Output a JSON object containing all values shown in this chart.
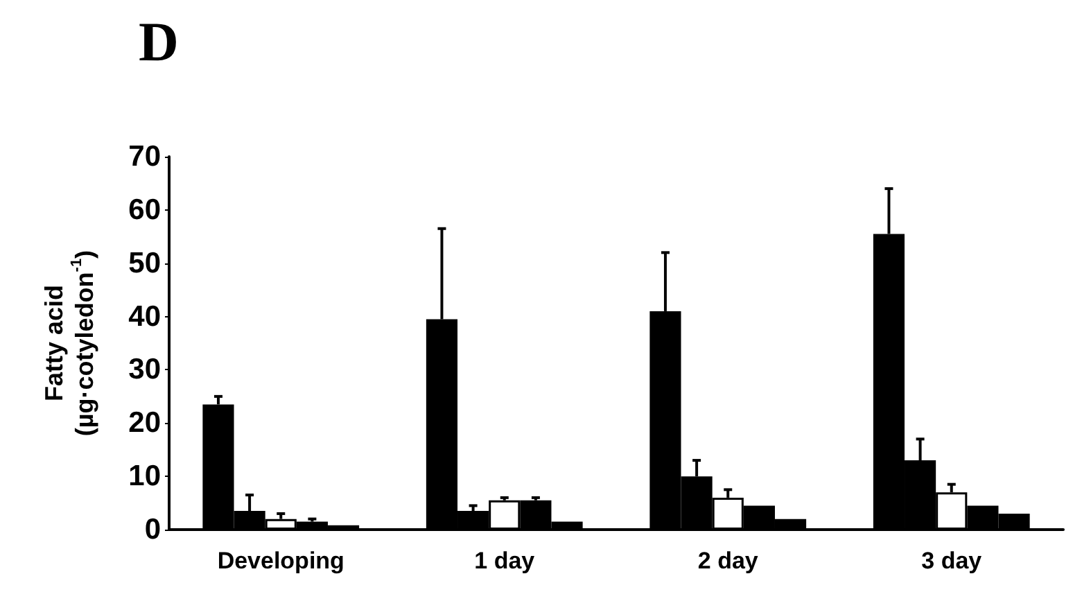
{
  "chart_data": {
    "type": "bar",
    "title": "D",
    "ylabel": "Fatty acid\n(µg·cotyledon$^{-1}$)",
    "categories": [
      "Developing",
      "1 day",
      "2 day",
      "3 day"
    ],
    "series": [
      {
        "color": "#000000",
        "values": [
          23.5,
          39.5,
          41,
          55.5
        ],
        "errors": [
          [
            23.5,
            25
          ],
          [
            39.5,
            56.5
          ],
          [
            41,
            52
          ],
          [
            55.5,
            64
          ]
        ]
      },
      {
        "color": "#000000",
        "values": [
          3.5,
          3.5,
          10,
          13
        ],
        "errors": [
          [
            3.5,
            6.5
          ],
          [
            3.5,
            4.5
          ],
          [
            10,
            13
          ],
          [
            13,
            17
          ]
        ]
      },
      {
        "color": "#ffffff",
        "values": [
          2,
          5.5,
          6,
          7
        ],
        "errors": [
          [
            2,
            3
          ],
          [
            5.5,
            6
          ],
          [
            6,
            7.5
          ],
          [
            7,
            8.5
          ]
        ]
      },
      {
        "color": "#000000",
        "values": [
          1.5,
          5.5,
          4.5,
          4.5
        ],
        "errors": [
          [
            1.5,
            2
          ],
          [
            5.5,
            6
          ],
          null,
          null
        ]
      },
      {
        "color": "#000000",
        "values": [
          0.8,
          1.5,
          2,
          3
        ]
      }
    ],
    "ylim": [
      0,
      70
    ],
    "yticks": [
      0,
      10,
      20,
      30,
      40,
      50,
      60,
      70
    ]
  }
}
